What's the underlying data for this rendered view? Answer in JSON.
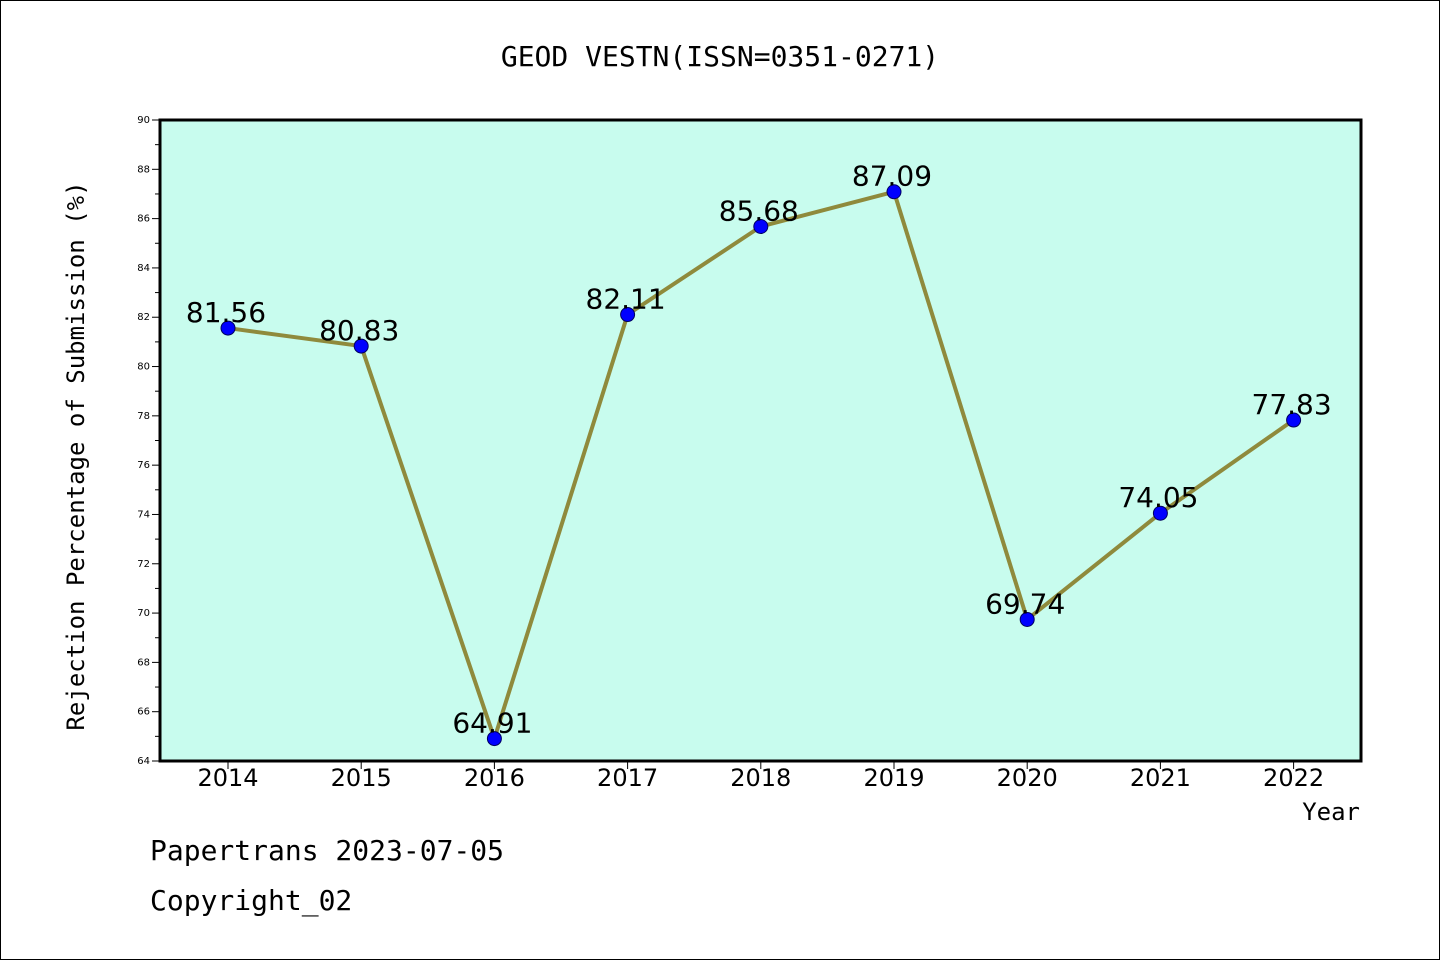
{
  "chart_data": {
    "type": "line",
    "title": "GEOD VESTN(ISSN=0351-0271)",
    "xlabel": "Year",
    "ylabel": "Rejection Percentage of Submission (%)",
    "categories": [
      "2014",
      "2015",
      "2016",
      "2017",
      "2018",
      "2019",
      "2020",
      "2021",
      "2022"
    ],
    "values": [
      81.56,
      80.83,
      64.91,
      82.11,
      85.68,
      87.09,
      69.74,
      74.05,
      77.83
    ],
    "data_labels": [
      "81.56",
      "80.83",
      "64.91",
      "82.11",
      "85.68",
      "87.09",
      "69.74",
      "74.05",
      "77.83"
    ],
    "ylim": [
      64,
      90
    ],
    "yticks": [
      "64",
      "66",
      "68",
      "70",
      "72",
      "74",
      "76",
      "78",
      "80",
      "82",
      "84",
      "86",
      "88",
      "90"
    ],
    "grid": false,
    "legend": "none",
    "colors": {
      "plot_background": "#c8fcee",
      "line": "#8f8a3c",
      "marker": "#0000ff"
    }
  },
  "footer": {
    "line1": "Papertrans 2023-07-05",
    "line2": "Copyright_02"
  }
}
